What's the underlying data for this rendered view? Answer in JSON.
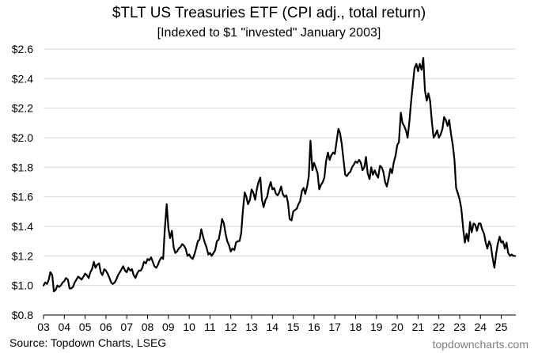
{
  "chart_data": {
    "type": "line",
    "title": "$TLT US Treasuries ETF (CPI adj., total return)",
    "subtitle": "[Indexed to $1 \"invested\" January 2003]",
    "xlabel": "",
    "ylabel": "",
    "xlim": [
      2003.0,
      2025.7
    ],
    "ylim": [
      0.8,
      2.6
    ],
    "y_ticks": [
      0.8,
      1.0,
      1.2,
      1.4,
      1.6,
      1.8,
      2.0,
      2.2,
      2.4,
      2.6
    ],
    "y_tick_labels": [
      "$0.8",
      "$1.0",
      "$1.2",
      "$1.4",
      "$1.6",
      "$1.8",
      "$2.0",
      "$2.2",
      "$2.4",
      "$2.6"
    ],
    "x_ticks": [
      2003,
      2004,
      2005,
      2006,
      2007,
      2008,
      2009,
      2010,
      2011,
      2012,
      2013,
      2014,
      2015,
      2016,
      2017,
      2018,
      2019,
      2020,
      2021,
      2022,
      2023,
      2024,
      2025
    ],
    "x_tick_labels": [
      "03",
      "04",
      "05",
      "06",
      "07",
      "08",
      "09",
      "10",
      "11",
      "12",
      "13",
      "14",
      "15",
      "16",
      "17",
      "18",
      "19",
      "20",
      "21",
      "22",
      "23",
      "24",
      "25"
    ],
    "grid": "horizontal",
    "legend": "none",
    "line_color": "#000000",
    "series": [
      {
        "points": [
          [
            2003.0,
            1.0
          ],
          [
            2003.08,
            1.02
          ],
          [
            2003.17,
            1.01
          ],
          [
            2003.25,
            1.04
          ],
          [
            2003.33,
            1.09
          ],
          [
            2003.42,
            1.07
          ],
          [
            2003.5,
            0.96
          ],
          [
            2003.58,
            0.97
          ],
          [
            2003.67,
            1.0
          ],
          [
            2003.75,
            0.99
          ],
          [
            2003.83,
            1.0
          ],
          [
            2003.92,
            1.02
          ],
          [
            2004.0,
            1.03
          ],
          [
            2004.08,
            1.05
          ],
          [
            2004.17,
            1.04
          ],
          [
            2004.25,
            0.98
          ],
          [
            2004.33,
            0.98
          ],
          [
            2004.42,
            0.99
          ],
          [
            2004.5,
            1.02
          ],
          [
            2004.58,
            1.04
          ],
          [
            2004.67,
            1.06
          ],
          [
            2004.75,
            1.05
          ],
          [
            2004.83,
            1.04
          ],
          [
            2004.92,
            1.06
          ],
          [
            2005.0,
            1.08
          ],
          [
            2005.08,
            1.07
          ],
          [
            2005.17,
            1.05
          ],
          [
            2005.25,
            1.09
          ],
          [
            2005.33,
            1.11
          ],
          [
            2005.42,
            1.16
          ],
          [
            2005.5,
            1.12
          ],
          [
            2005.58,
            1.14
          ],
          [
            2005.67,
            1.15
          ],
          [
            2005.75,
            1.09
          ],
          [
            2005.83,
            1.07
          ],
          [
            2005.92,
            1.11
          ],
          [
            2006.0,
            1.1
          ],
          [
            2006.08,
            1.08
          ],
          [
            2006.17,
            1.05
          ],
          [
            2006.25,
            1.02
          ],
          [
            2006.33,
            1.01
          ],
          [
            2006.42,
            1.02
          ],
          [
            2006.5,
            1.04
          ],
          [
            2006.58,
            1.07
          ],
          [
            2006.67,
            1.09
          ],
          [
            2006.75,
            1.11
          ],
          [
            2006.83,
            1.13
          ],
          [
            2006.92,
            1.1
          ],
          [
            2007.0,
            1.09
          ],
          [
            2007.08,
            1.12
          ],
          [
            2007.17,
            1.1
          ],
          [
            2007.25,
            1.11
          ],
          [
            2007.33,
            1.07
          ],
          [
            2007.42,
            1.05
          ],
          [
            2007.5,
            1.08
          ],
          [
            2007.58,
            1.1
          ],
          [
            2007.67,
            1.1
          ],
          [
            2007.75,
            1.12
          ],
          [
            2007.83,
            1.16
          ],
          [
            2007.92,
            1.15
          ],
          [
            2008.0,
            1.18
          ],
          [
            2008.08,
            1.17
          ],
          [
            2008.17,
            1.19
          ],
          [
            2008.25,
            1.16
          ],
          [
            2008.33,
            1.13
          ],
          [
            2008.42,
            1.12
          ],
          [
            2008.5,
            1.14
          ],
          [
            2008.58,
            1.17
          ],
          [
            2008.67,
            1.19
          ],
          [
            2008.75,
            1.18
          ],
          [
            2008.83,
            1.38
          ],
          [
            2008.92,
            1.55
          ],
          [
            2009.0,
            1.39
          ],
          [
            2009.08,
            1.32
          ],
          [
            2009.17,
            1.37
          ],
          [
            2009.25,
            1.26
          ],
          [
            2009.33,
            1.22
          ],
          [
            2009.42,
            1.23
          ],
          [
            2009.5,
            1.25
          ],
          [
            2009.58,
            1.26
          ],
          [
            2009.67,
            1.28
          ],
          [
            2009.75,
            1.27
          ],
          [
            2009.83,
            1.25
          ],
          [
            2009.92,
            1.2
          ],
          [
            2010.0,
            1.21
          ],
          [
            2010.08,
            1.19
          ],
          [
            2010.17,
            1.18
          ],
          [
            2010.25,
            1.21
          ],
          [
            2010.33,
            1.25
          ],
          [
            2010.42,
            1.3
          ],
          [
            2010.5,
            1.31
          ],
          [
            2010.58,
            1.38
          ],
          [
            2010.67,
            1.33
          ],
          [
            2010.75,
            1.29
          ],
          [
            2010.83,
            1.26
          ],
          [
            2010.92,
            1.21
          ],
          [
            2011.0,
            1.22
          ],
          [
            2011.08,
            1.2
          ],
          [
            2011.17,
            1.22
          ],
          [
            2011.25,
            1.24
          ],
          [
            2011.33,
            1.3
          ],
          [
            2011.42,
            1.31
          ],
          [
            2011.5,
            1.37
          ],
          [
            2011.58,
            1.45
          ],
          [
            2011.67,
            1.42
          ],
          [
            2011.75,
            1.35
          ],
          [
            2011.83,
            1.3
          ],
          [
            2011.92,
            1.27
          ],
          [
            2012.0,
            1.23
          ],
          [
            2012.08,
            1.25
          ],
          [
            2012.17,
            1.24
          ],
          [
            2012.25,
            1.29
          ],
          [
            2012.33,
            1.3
          ],
          [
            2012.42,
            1.3
          ],
          [
            2012.5,
            1.35
          ],
          [
            2012.58,
            1.5
          ],
          [
            2012.67,
            1.63
          ],
          [
            2012.75,
            1.6
          ],
          [
            2012.83,
            1.55
          ],
          [
            2012.92,
            1.58
          ],
          [
            2013.0,
            1.65
          ],
          [
            2013.08,
            1.63
          ],
          [
            2013.17,
            1.58
          ],
          [
            2013.25,
            1.65
          ],
          [
            2013.33,
            1.7
          ],
          [
            2013.42,
            1.73
          ],
          [
            2013.5,
            1.58
          ],
          [
            2013.58,
            1.53
          ],
          [
            2013.67,
            1.58
          ],
          [
            2013.75,
            1.6
          ],
          [
            2013.83,
            1.66
          ],
          [
            2013.92,
            1.7
          ],
          [
            2014.0,
            1.65
          ],
          [
            2014.08,
            1.66
          ],
          [
            2014.17,
            1.62
          ],
          [
            2014.25,
            1.61
          ],
          [
            2014.33,
            1.63
          ],
          [
            2014.42,
            1.67
          ],
          [
            2014.5,
            1.62
          ],
          [
            2014.58,
            1.6
          ],
          [
            2014.67,
            1.61
          ],
          [
            2014.75,
            1.56
          ],
          [
            2014.83,
            1.45
          ],
          [
            2014.92,
            1.44
          ],
          [
            2015.0,
            1.5
          ],
          [
            2015.08,
            1.51
          ],
          [
            2015.17,
            1.52
          ],
          [
            2015.25,
            1.55
          ],
          [
            2015.33,
            1.57
          ],
          [
            2015.42,
            1.64
          ],
          [
            2015.5,
            1.66
          ],
          [
            2015.58,
            1.62
          ],
          [
            2015.67,
            1.67
          ],
          [
            2015.75,
            1.74
          ],
          [
            2015.83,
            1.98
          ],
          [
            2015.92,
            1.78
          ],
          [
            2016.0,
            1.83
          ],
          [
            2016.08,
            1.8
          ],
          [
            2016.17,
            1.76
          ],
          [
            2016.25,
            1.65
          ],
          [
            2016.33,
            1.68
          ],
          [
            2016.42,
            1.7
          ],
          [
            2016.5,
            1.73
          ],
          [
            2016.58,
            1.84
          ],
          [
            2016.67,
            1.9
          ],
          [
            2016.75,
            1.85
          ],
          [
            2016.83,
            1.88
          ],
          [
            2016.92,
            1.9
          ],
          [
            2017.0,
            1.89
          ],
          [
            2017.08,
            1.97
          ],
          [
            2017.17,
            2.06
          ],
          [
            2017.25,
            2.03
          ],
          [
            2017.33,
            1.96
          ],
          [
            2017.42,
            1.85
          ],
          [
            2017.5,
            1.75
          ],
          [
            2017.58,
            1.74
          ],
          [
            2017.67,
            1.76
          ],
          [
            2017.75,
            1.77
          ],
          [
            2017.83,
            1.8
          ],
          [
            2017.92,
            1.82
          ],
          [
            2018.0,
            1.84
          ],
          [
            2018.08,
            1.83
          ],
          [
            2018.17,
            1.85
          ],
          [
            2018.25,
            1.83
          ],
          [
            2018.33,
            1.78
          ],
          [
            2018.42,
            1.8
          ],
          [
            2018.5,
            1.87
          ],
          [
            2018.58,
            1.76
          ],
          [
            2018.67,
            1.72
          ],
          [
            2018.75,
            1.8
          ],
          [
            2018.83,
            1.75
          ],
          [
            2018.92,
            1.78
          ],
          [
            2019.0,
            1.75
          ],
          [
            2019.08,
            1.73
          ],
          [
            2019.17,
            1.81
          ],
          [
            2019.25,
            1.8
          ],
          [
            2019.33,
            1.77
          ],
          [
            2019.42,
            1.7
          ],
          [
            2019.5,
            1.67
          ],
          [
            2019.58,
            1.72
          ],
          [
            2019.67,
            1.79
          ],
          [
            2019.75,
            1.76
          ],
          [
            2019.83,
            1.83
          ],
          [
            2019.92,
            1.88
          ],
          [
            2020.0,
            1.95
          ],
          [
            2020.08,
            1.97
          ],
          [
            2020.17,
            2.17
          ],
          [
            2020.25,
            2.1
          ],
          [
            2020.33,
            2.08
          ],
          [
            2020.42,
            2.05
          ],
          [
            2020.5,
            2.0
          ],
          [
            2020.58,
            2.1
          ],
          [
            2020.67,
            2.25
          ],
          [
            2020.75,
            2.36
          ],
          [
            2020.83,
            2.47
          ],
          [
            2020.92,
            2.5
          ],
          [
            2021.0,
            2.45
          ],
          [
            2021.08,
            2.5
          ],
          [
            2021.17,
            2.46
          ],
          [
            2021.25,
            2.54
          ],
          [
            2021.33,
            2.32
          ],
          [
            2021.42,
            2.25
          ],
          [
            2021.5,
            2.3
          ],
          [
            2021.58,
            2.25
          ],
          [
            2021.67,
            2.1
          ],
          [
            2021.75,
            2.0
          ],
          [
            2021.83,
            2.02
          ],
          [
            2021.92,
            2.05
          ],
          [
            2022.0,
            2.0
          ],
          [
            2022.08,
            2.02
          ],
          [
            2022.17,
            2.06
          ],
          [
            2022.25,
            2.14
          ],
          [
            2022.33,
            2.12
          ],
          [
            2022.42,
            2.08
          ],
          [
            2022.5,
            2.12
          ],
          [
            2022.58,
            2.03
          ],
          [
            2022.67,
            1.95
          ],
          [
            2022.75,
            1.85
          ],
          [
            2022.83,
            1.66
          ],
          [
            2022.92,
            1.62
          ],
          [
            2023.0,
            1.58
          ],
          [
            2023.08,
            1.52
          ],
          [
            2023.17,
            1.38
          ],
          [
            2023.25,
            1.29
          ],
          [
            2023.33,
            1.35
          ],
          [
            2023.42,
            1.3
          ],
          [
            2023.5,
            1.43
          ],
          [
            2023.58,
            1.36
          ],
          [
            2023.67,
            1.42
          ],
          [
            2023.75,
            1.41
          ],
          [
            2023.83,
            1.37
          ],
          [
            2023.92,
            1.42
          ],
          [
            2024.0,
            1.42
          ],
          [
            2024.08,
            1.38
          ],
          [
            2024.17,
            1.35
          ],
          [
            2024.25,
            1.29
          ],
          [
            2024.33,
            1.25
          ],
          [
            2024.42,
            1.3
          ],
          [
            2024.5,
            1.27
          ],
          [
            2024.58,
            1.19
          ],
          [
            2024.67,
            1.12
          ],
          [
            2024.75,
            1.21
          ],
          [
            2024.83,
            1.28
          ],
          [
            2024.92,
            1.33
          ],
          [
            2025.0,
            1.29
          ],
          [
            2025.08,
            1.3
          ],
          [
            2025.17,
            1.25
          ],
          [
            2025.25,
            1.29
          ],
          [
            2025.33,
            1.22
          ],
          [
            2025.42,
            1.2
          ],
          [
            2025.5,
            1.21
          ],
          [
            2025.58,
            1.2
          ],
          [
            2025.67,
            1.2
          ]
        ]
      }
    ]
  },
  "footer": {
    "source": "Source: Topdown Charts, LSEG",
    "watermark": "topdowncharts.com"
  }
}
